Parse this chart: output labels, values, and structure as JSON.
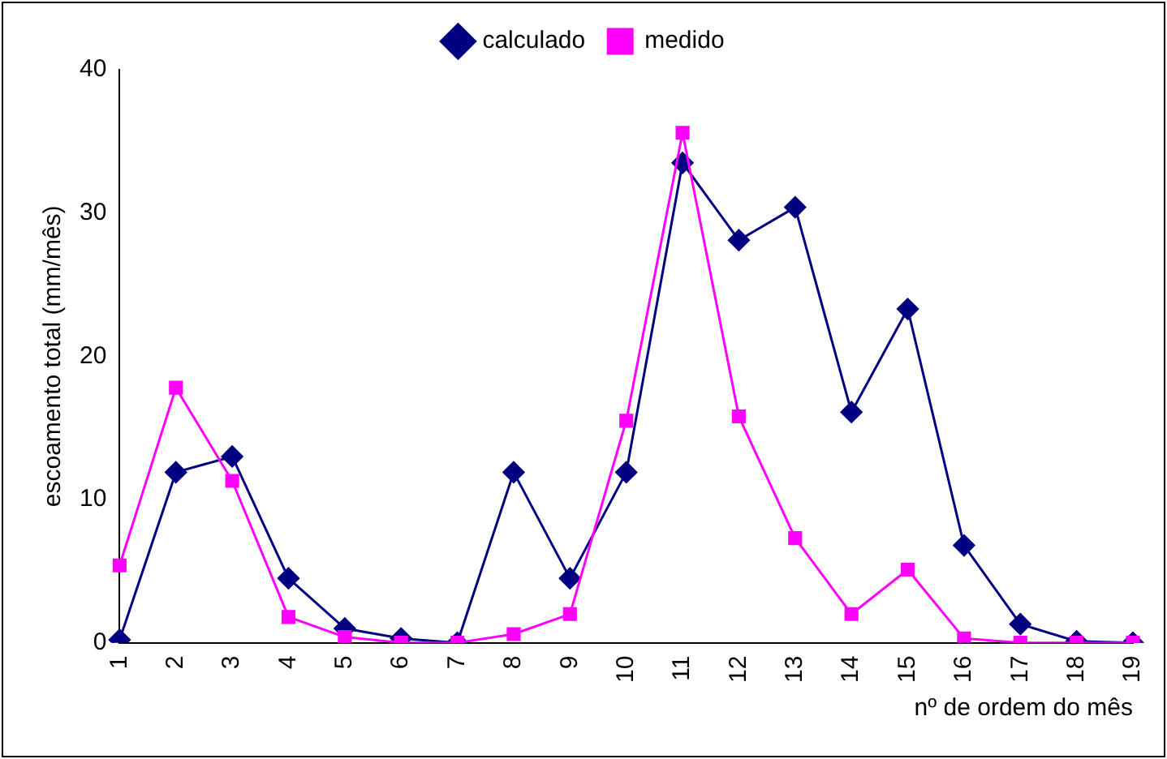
{
  "chart_data": {
    "type": "line",
    "ylabel": "escoamento total (mm/mês)",
    "xlabel": "nº de ordem do mês",
    "categories": [
      "1",
      "2",
      "3",
      "4",
      "5",
      "6",
      "7",
      "8",
      "9",
      "10",
      "11",
      "12",
      "13",
      "14",
      "15",
      "16",
      "17",
      "18",
      "19"
    ],
    "series": [
      {
        "name": "calculado",
        "color": "#000080",
        "marker": "diamond",
        "values": [
          0.2,
          11.9,
          13,
          4.5,
          1,
          0.3,
          0,
          11.9,
          4.5,
          11.9,
          33.5,
          28.1,
          30.4,
          16.1,
          23.3,
          6.8,
          1.3,
          0.1,
          0
        ]
      },
      {
        "name": "medido",
        "color": "#ff00ff",
        "marker": "square",
        "values": [
          5.4,
          17.8,
          11.3,
          1.8,
          0.4,
          0,
          0,
          0.6,
          2,
          15.5,
          35.6,
          15.8,
          7.3,
          2,
          5.1,
          0.3,
          0,
          0,
          0
        ]
      }
    ],
    "ylim": [
      0,
      40
    ],
    "yticks": [
      0,
      10,
      20,
      30,
      40
    ],
    "grid": false,
    "legend": "top",
    "line_style": "solid"
  }
}
